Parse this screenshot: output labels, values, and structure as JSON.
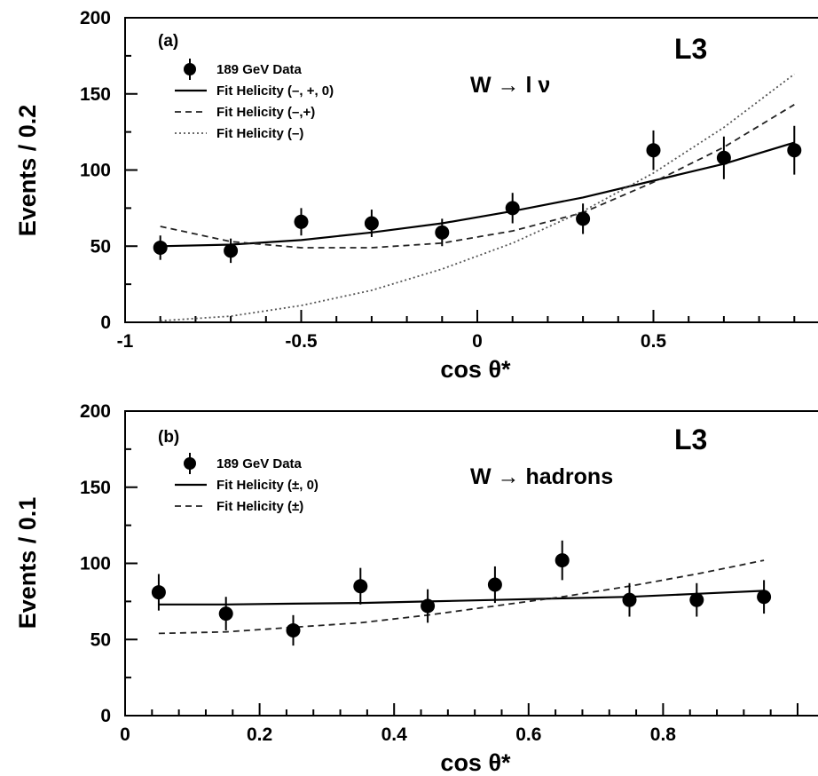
{
  "chart_data": [
    {
      "type": "scatter",
      "panel_label": "(a)",
      "experiment": "L3",
      "process": "W → l ν",
      "xlabel": "cos θ*",
      "ylabel": "Events / 0.2",
      "xlim": [
        -1,
        1
      ],
      "ylim": [
        0,
        200
      ],
      "xticks": [
        -1,
        -0.5,
        0,
        0.5
      ],
      "xtick_labels": [
        "-1",
        "-0.5",
        "0",
        "0.5"
      ],
      "yticks": [
        0,
        50,
        100,
        150,
        200
      ],
      "ytick_labels": [
        "0",
        "50",
        "100",
        "150",
        "200"
      ],
      "legend_position": "top-left",
      "data_series": {
        "name": "189 GeV Data",
        "x": [
          -0.9,
          -0.7,
          -0.5,
          -0.3,
          -0.1,
          0.1,
          0.3,
          0.5,
          0.7,
          0.9
        ],
        "y": [
          49,
          47,
          66,
          65,
          59,
          75,
          68,
          113,
          108,
          113
        ],
        "err": [
          8,
          8,
          9,
          9,
          9,
          10,
          10,
          13,
          14,
          16
        ]
      },
      "fit_series": [
        {
          "name": "Fit Helicity (–, +, 0)",
          "style": "solid",
          "x": [
            -0.9,
            -0.7,
            -0.5,
            -0.3,
            -0.1,
            0.1,
            0.3,
            0.5,
            0.7,
            0.9
          ],
          "y": [
            50,
            51,
            54,
            59,
            65,
            73,
            82,
            93,
            104,
            118
          ]
        },
        {
          "name": "Fit Helicity (–,+)",
          "style": "dashed",
          "x": [
            -0.9,
            -0.7,
            -0.5,
            -0.3,
            -0.1,
            0.1,
            0.3,
            0.5,
            0.7,
            0.9
          ],
          "y": [
            63,
            53,
            49,
            49,
            52,
            60,
            72,
            92,
            115,
            143
          ]
        },
        {
          "name": "Fit Helicity (–)",
          "style": "dotted",
          "x": [
            -0.9,
            -0.7,
            -0.5,
            -0.3,
            -0.1,
            0.1,
            0.3,
            0.5,
            0.7,
            0.9
          ],
          "y": [
            1,
            4,
            11,
            21,
            35,
            52,
            73,
            98,
            128,
            163
          ]
        }
      ]
    },
    {
      "type": "scatter",
      "panel_label": "(b)",
      "experiment": "L3",
      "process": "W → hadrons",
      "xlabel": "cos θ*",
      "ylabel": "Events / 0.1",
      "xlim": [
        0,
        1
      ],
      "ylim": [
        0,
        200
      ],
      "xticks": [
        0,
        0.2,
        0.4,
        0.6,
        0.8
      ],
      "xtick_labels": [
        "0",
        "0.2",
        "0.4",
        "0.6",
        "0.8"
      ],
      "yticks": [
        0,
        50,
        100,
        150,
        200
      ],
      "ytick_labels": [
        "0",
        "50",
        "100",
        "150",
        "200"
      ],
      "legend_position": "top-left",
      "data_series": {
        "name": "189 GeV Data",
        "x": [
          0.05,
          0.15,
          0.25,
          0.35,
          0.45,
          0.55,
          0.65,
          0.75,
          0.85,
          0.95
        ],
        "y": [
          81,
          67,
          56,
          85,
          72,
          86,
          102,
          76,
          76,
          78
        ],
        "err": [
          12,
          11,
          10,
          12,
          11,
          12,
          13,
          11,
          11,
          11
        ]
      },
      "fit_series": [
        {
          "name": "Fit Helicity (±, 0)",
          "style": "solid",
          "x": [
            0.05,
            0.15,
            0.25,
            0.35,
            0.45,
            0.55,
            0.65,
            0.75,
            0.85,
            0.95
          ],
          "y": [
            73,
            73,
            73.5,
            74,
            75,
            76,
            77,
            78,
            80,
            82
          ]
        },
        {
          "name": "Fit Helicity (±)",
          "style": "dashed",
          "x": [
            0.05,
            0.15,
            0.25,
            0.35,
            0.45,
            0.55,
            0.65,
            0.75,
            0.85,
            0.95
          ],
          "y": [
            54,
            55,
            58,
            61,
            66,
            72,
            78,
            85,
            93,
            102
          ]
        }
      ]
    }
  ]
}
